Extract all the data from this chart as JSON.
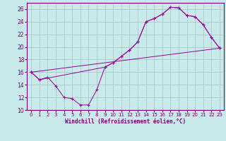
{
  "xlabel": "Windchill (Refroidissement éolien,°C)",
  "background_color": "#c8eaea",
  "grid_color": "#b0c8c8",
  "line_color": "#990099",
  "xlim": [
    -0.5,
    23.5
  ],
  "ylim": [
    10,
    27
  ],
  "yticks": [
    10,
    12,
    14,
    16,
    18,
    20,
    22,
    24,
    26
  ],
  "xticks": [
    0,
    1,
    2,
    3,
    4,
    5,
    6,
    7,
    8,
    9,
    10,
    11,
    12,
    13,
    14,
    15,
    16,
    17,
    18,
    19,
    20,
    21,
    22,
    23
  ],
  "series1_x": [
    0,
    1,
    2,
    3,
    4,
    5,
    6,
    7,
    8,
    9,
    10,
    11,
    12,
    13,
    14,
    15,
    16,
    17,
    18,
    19,
    20,
    21,
    22,
    23
  ],
  "series1_y": [
    16.0,
    14.8,
    15.2,
    13.8,
    12.0,
    11.8,
    10.8,
    10.8,
    13.2,
    16.8,
    17.5,
    18.5,
    19.5,
    20.8,
    24.0,
    24.5,
    25.2,
    26.3,
    26.2,
    25.0,
    24.8,
    23.5,
    21.5,
    19.8
  ],
  "series2_x": [
    0,
    1,
    9,
    10,
    11,
    12,
    13,
    14,
    15,
    16,
    17,
    18,
    19,
    20,
    21,
    22,
    23
  ],
  "series2_y": [
    16.0,
    14.8,
    16.8,
    17.5,
    18.5,
    19.5,
    20.8,
    24.0,
    24.5,
    25.2,
    26.3,
    26.2,
    25.0,
    24.8,
    23.5,
    21.5,
    19.8
  ],
  "series3_x": [
    0,
    23
  ],
  "series3_y": [
    16.0,
    19.8
  ]
}
